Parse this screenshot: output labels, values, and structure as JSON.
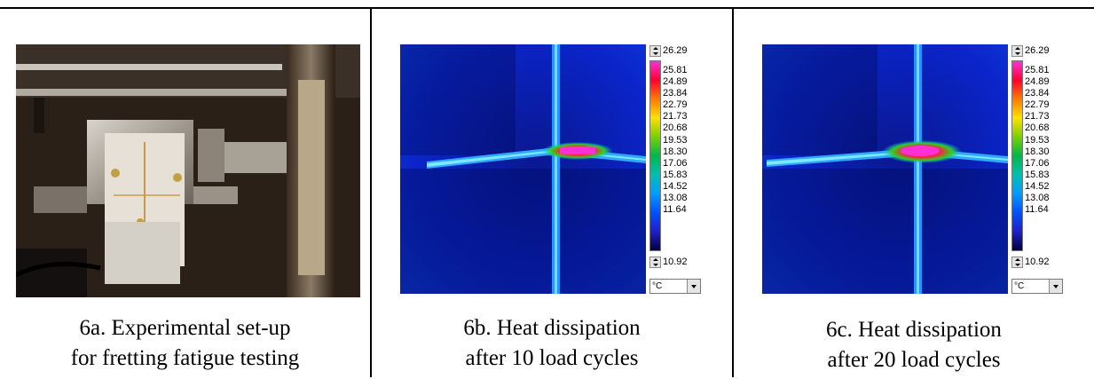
{
  "figures": [
    {
      "caption_line1": "6a. Experimental set-up",
      "caption_line2": "for fretting fatigue testing"
    },
    {
      "caption_line1": "6b. Heat dissipation",
      "caption_line2": "after 10 load cycles"
    },
    {
      "caption_line1": "6c. Heat dissipation",
      "caption_line2": "after 20 load cycles"
    }
  ],
  "color_scale": {
    "max": "26.29",
    "ticks": [
      "25.81",
      "24.89",
      "23.84",
      "22.79",
      "21.73",
      "20.68",
      "19.53",
      "18.30",
      "17.06",
      "15.83",
      "14.52",
      "13.08",
      "11.64"
    ],
    "min": "10.92",
    "unit": "°C"
  },
  "colors": {
    "hotspot": "#ff2fd8",
    "background": "#0a1aa8",
    "line": "#3fb0ff"
  }
}
